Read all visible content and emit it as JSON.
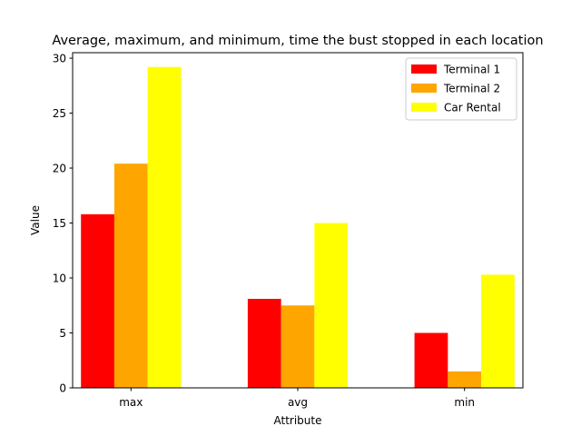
{
  "chart_data": {
    "type": "bar",
    "title": "Average, maximum, and minimum, time the bust stopped in each location",
    "xlabel": "Attribute",
    "ylabel": "Value",
    "categories": [
      "max",
      "avg",
      "min"
    ],
    "series": [
      {
        "name": "Terminal 1",
        "color": "#ff0000",
        "values": [
          15.8,
          8.1,
          5.0
        ]
      },
      {
        "name": "Terminal 2",
        "color": "#ffa500",
        "values": [
          20.4,
          7.5,
          1.5
        ]
      },
      {
        "name": "Car Rental",
        "color": "#ffff00",
        "values": [
          29.2,
          15.0,
          10.3
        ]
      }
    ],
    "ylim": [
      0,
      30.5
    ],
    "yticks": [
      0,
      5,
      10,
      15,
      20,
      25,
      30
    ],
    "grid": false,
    "legend_position": "top-right"
  }
}
